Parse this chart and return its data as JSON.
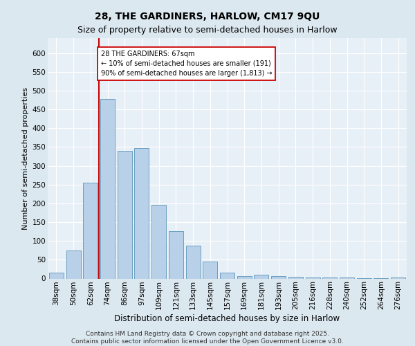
{
  "title1": "28, THE GARDINERS, HARLOW, CM17 9QU",
  "title2": "Size of property relative to semi-detached houses in Harlow",
  "xlabel": "Distribution of semi-detached houses by size in Harlow",
  "ylabel": "Number of semi-detached properties",
  "footer": "Contains HM Land Registry data © Crown copyright and database right 2025.\nContains public sector information licensed under the Open Government Licence v3.0.",
  "bins": [
    "38sqm",
    "50sqm",
    "62sqm",
    "74sqm",
    "86sqm",
    "97sqm",
    "109sqm",
    "121sqm",
    "133sqm",
    "145sqm",
    "157sqm",
    "169sqm",
    "181sqm",
    "193sqm",
    "205sqm",
    "216sqm",
    "228sqm",
    "240sqm",
    "252sqm",
    "264sqm",
    "276sqm"
  ],
  "bar_heights": [
    15,
    75,
    255,
    478,
    340,
    347,
    196,
    126,
    88,
    46,
    15,
    7,
    10,
    7,
    5,
    3,
    2,
    2,
    1,
    1,
    2
  ],
  "bar_color": "#b8d0e8",
  "bar_edge_color": "#6a9fc0",
  "vline_x": 2.5,
  "vline_color": "#cc0000",
  "annotation_text": "28 THE GARDINERS: 67sqm\n← 10% of semi-detached houses are smaller (191)\n90% of semi-detached houses are larger (1,813) →",
  "annotation_box_color": "#ffffff",
  "annotation_box_edge": "#cc0000",
  "ylim": [
    0,
    640
  ],
  "yticks": [
    0,
    50,
    100,
    150,
    200,
    250,
    300,
    350,
    400,
    450,
    500,
    550,
    600
  ],
  "bg_color": "#dce8f0",
  "plot_bg": "#e8f0f7",
  "grid_color": "#ffffff",
  "title1_fontsize": 10,
  "title2_fontsize": 9,
  "ylabel_fontsize": 8,
  "xlabel_fontsize": 8.5,
  "tick_fontsize": 7.5,
  "footer_fontsize": 6.5
}
